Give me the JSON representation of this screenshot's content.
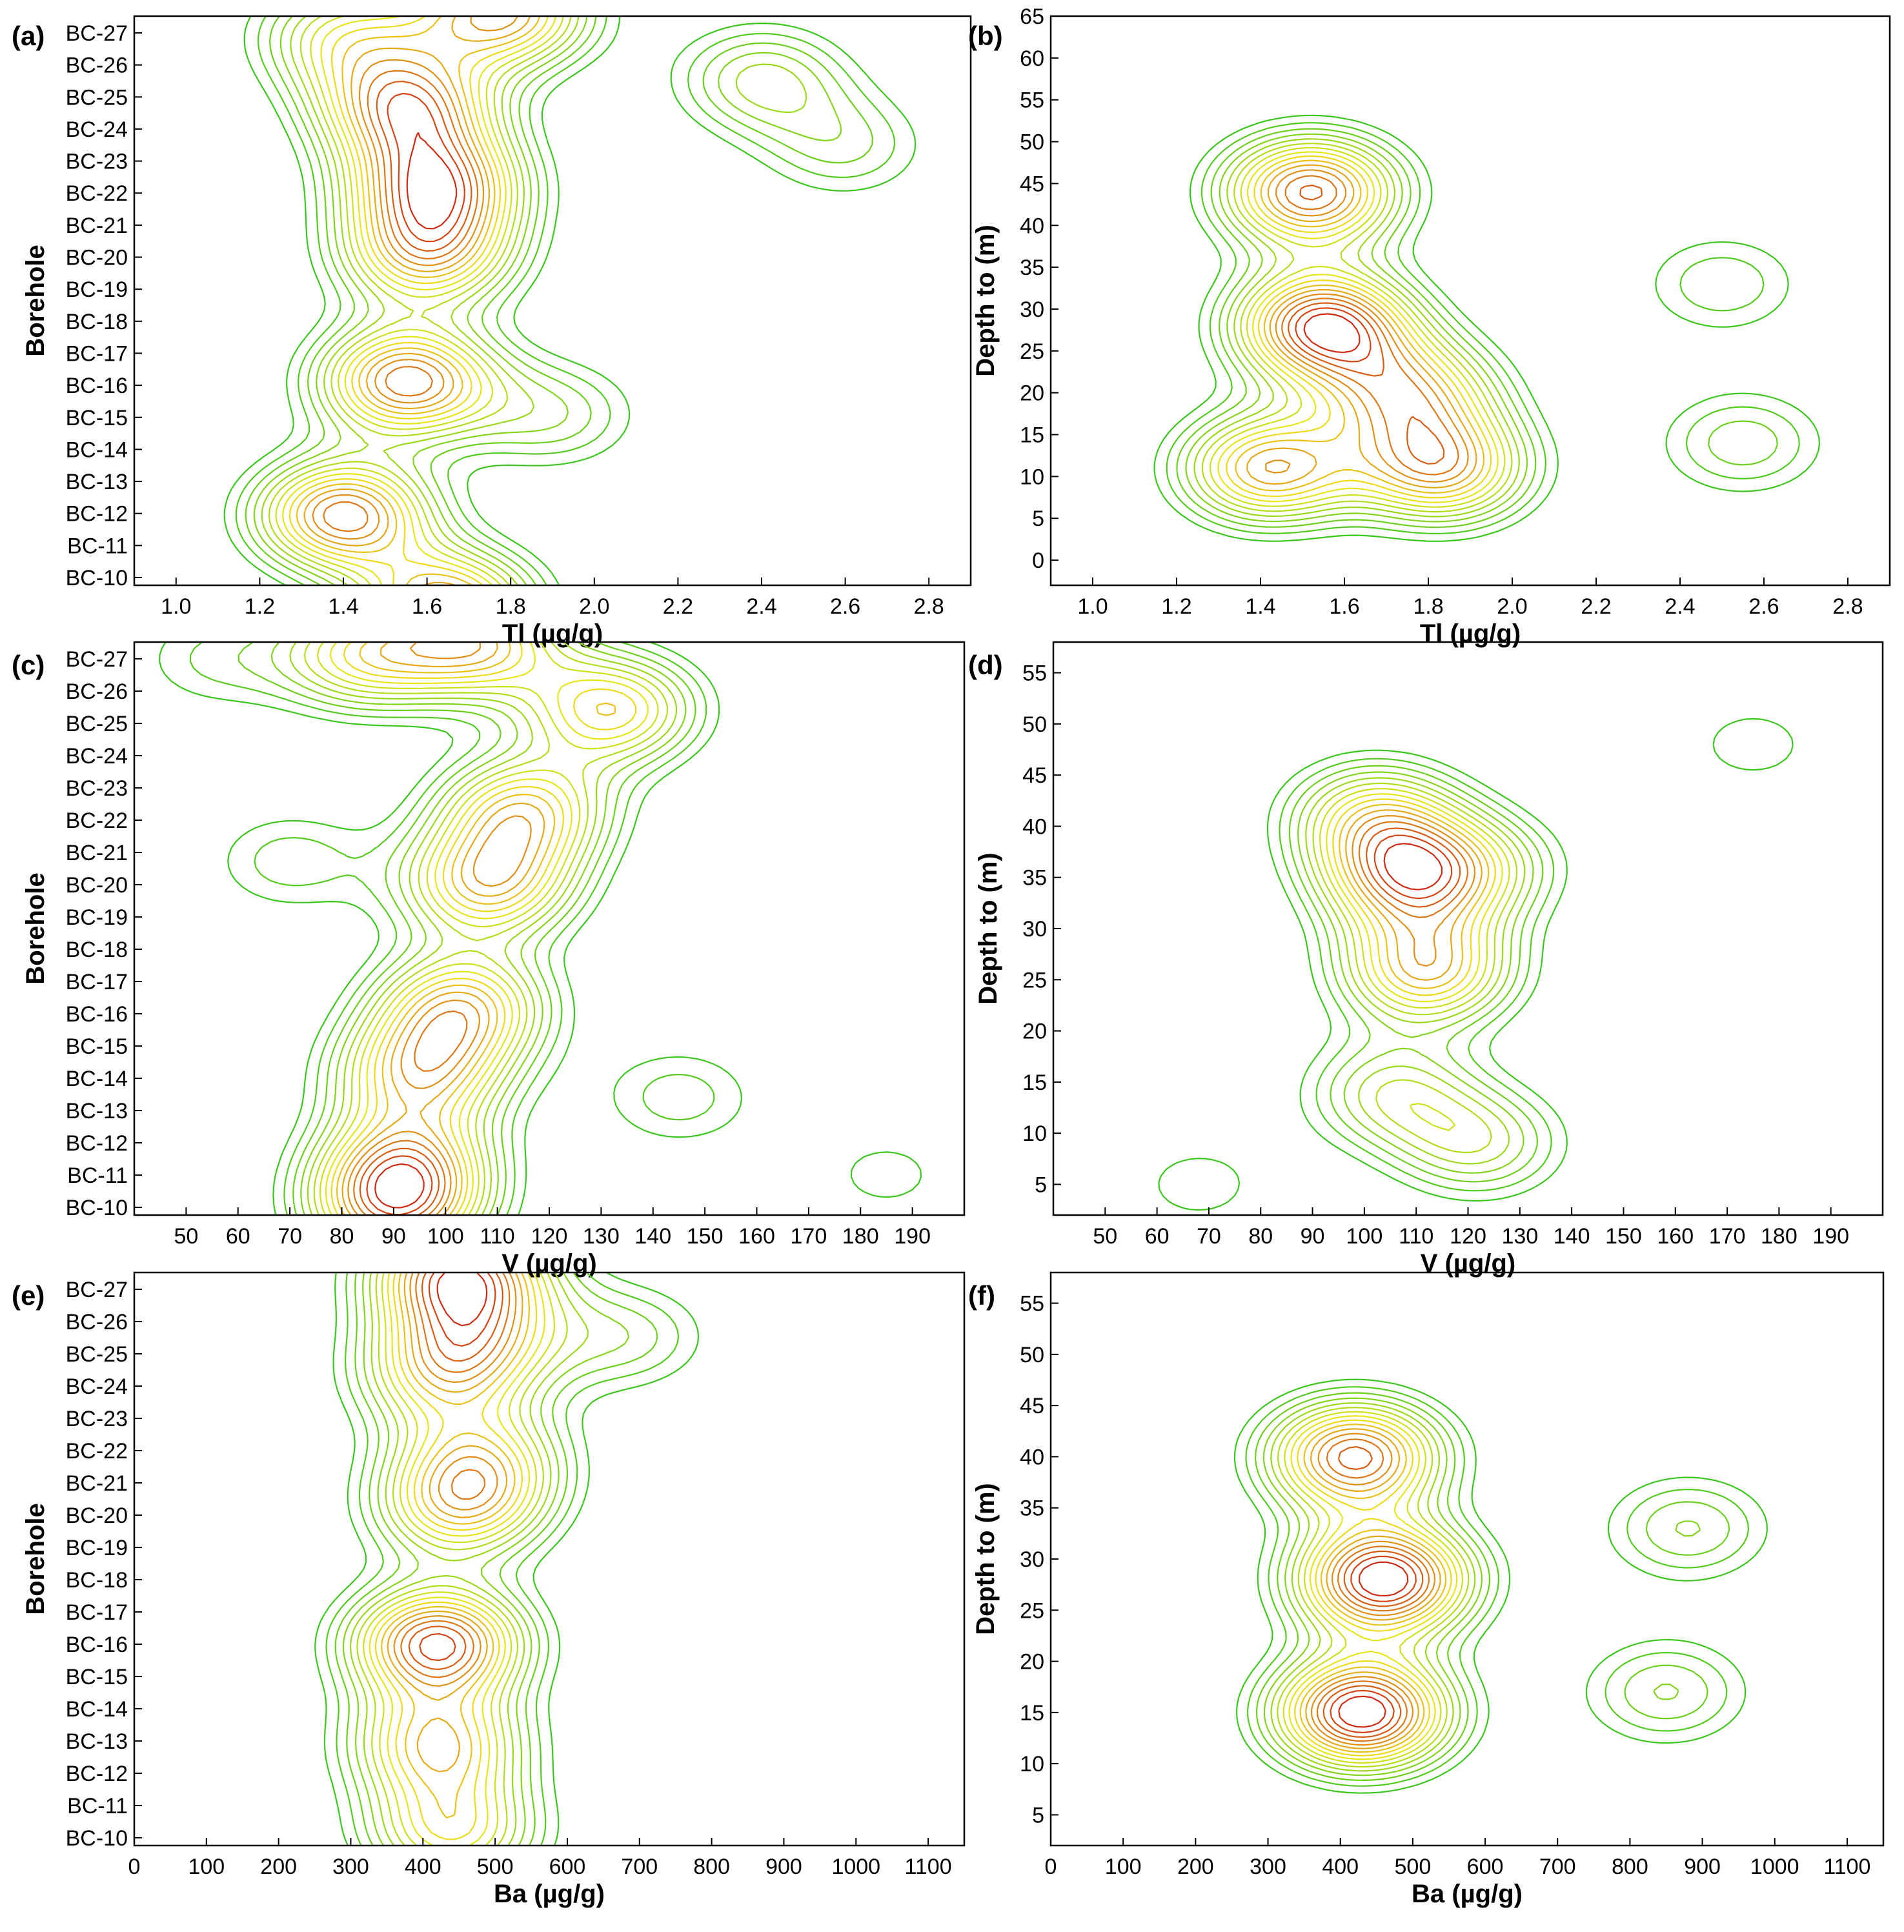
{
  "chart_data": [
    {
      "panel": "(a)",
      "type": "contour",
      "xlabel": "Tl (µg/g)",
      "ylabel": "Borehole",
      "xticks": [
        "1.0",
        "1.2",
        "1.4",
        "1.6",
        "1.8",
        "2.0",
        "2.2",
        "2.4",
        "2.6",
        "2.8"
      ],
      "xlim": [
        0.9,
        2.9
      ],
      "yticks": [
        "BC-10",
        "BC-11",
        "BC-12",
        "BC-13",
        "BC-14",
        "BC-15",
        "BC-16",
        "BC-17",
        "BC-18",
        "BC-19",
        "BC-20",
        "BC-21",
        "BC-22",
        "BC-23",
        "BC-24",
        "BC-25",
        "BC-26",
        "BC-27"
      ],
      "colormap": [
        "#22c21e",
        "#f0e818",
        "#cc1010"
      ],
      "peaks": [
        {
          "x": 1.62,
          "y": 12,
          "level": 0.95
        },
        {
          "x": 1.55,
          "y": 14.3,
          "level": 0.92
        },
        {
          "x": 1.55,
          "y": 6.1,
          "level": 1.0
        },
        {
          "x": 1.4,
          "y": 2.1,
          "level": 1.0
        },
        {
          "x": 1.6,
          "y": 9.9,
          "level": 0.8
        },
        {
          "x": 1.78,
          "y": 17.1,
          "level": 0.9
        },
        {
          "x": 1.65,
          "y": -0.6,
          "level": 0.9
        },
        {
          "x": 2.4,
          "y": 15.1,
          "level": 0.45
        },
        {
          "x": 2.6,
          "y": 13.1,
          "level": 0.3
        },
        {
          "x": 1.4,
          "y": 16.4,
          "level": 0.55
        },
        {
          "x": 1.9,
          "y": 5.1,
          "level": 0.35
        }
      ]
    },
    {
      "panel": "(b)",
      "type": "contour",
      "xlabel": "Tl (µg/g)",
      "ylabel": "Depth to (m)",
      "xticks": [
        "1.0",
        "1.2",
        "1.4",
        "1.6",
        "1.8",
        "2.0",
        "2.2",
        "2.4",
        "2.6",
        "2.8"
      ],
      "xlim": [
        0.9,
        2.9
      ],
      "yticks": [
        "0",
        "5",
        "10",
        "15",
        "20",
        "25",
        "30",
        "35",
        "40",
        "45",
        "50",
        "55",
        "60",
        "65"
      ],
      "ylim": [
        -3,
        65
      ],
      "colormap": [
        "#22c21e",
        "#f0e818",
        "#cc1010"
      ],
      "peaks": [
        {
          "x": 1.55,
          "y": 28,
          "level": 1.0
        },
        {
          "x": 1.52,
          "y": 44,
          "level": 0.9
        },
        {
          "x": 1.42,
          "y": 11,
          "level": 0.75
        },
        {
          "x": 1.83,
          "y": 11,
          "level": 0.75
        },
        {
          "x": 1.75,
          "y": 20,
          "level": 0.65
        },
        {
          "x": 2.55,
          "y": 14,
          "level": 0.3
        },
        {
          "x": 2.5,
          "y": 33,
          "level": 0.25
        }
      ]
    },
    {
      "panel": "(c)",
      "type": "contour",
      "xlabel": "V (µg/g)",
      "ylabel": "Borehole",
      "xticks": [
        "50",
        "60",
        "70",
        "80",
        "90",
        "100",
        "110",
        "120",
        "130",
        "140",
        "150",
        "160",
        "170",
        "180",
        "190"
      ],
      "xlim": [
        40,
        200
      ],
      "yticks": [
        "BC-10",
        "BC-11",
        "BC-12",
        "BC-13",
        "BC-14",
        "BC-15",
        "BC-16",
        "BC-17",
        "BC-18",
        "BC-19",
        "BC-20",
        "BC-21",
        "BC-22",
        "BC-23",
        "BC-24",
        "BC-25",
        "BC-26",
        "BC-27"
      ],
      "colormap": [
        "#22c21e",
        "#f0e818",
        "#cc1010"
      ],
      "peaks": [
        {
          "x": 106,
          "y": 17,
          "level": 1.0
        },
        {
          "x": 132,
          "y": 15,
          "level": 0.95
        },
        {
          "x": 115,
          "y": 12,
          "level": 0.95
        },
        {
          "x": 108,
          "y": 9.8,
          "level": 1.0
        },
        {
          "x": 103,
          "y": 6.2,
          "level": 1.0
        },
        {
          "x": 95,
          "y": 4.2,
          "level": 0.95
        },
        {
          "x": 92,
          "y": 1.5,
          "level": 1.0
        },
        {
          "x": 90,
          "y": 0,
          "level": 0.95
        },
        {
          "x": 70,
          "y": 10.5,
          "level": 0.35
        },
        {
          "x": 55,
          "y": 16.5,
          "level": 0.3
        },
        {
          "x": 145,
          "y": 3.5,
          "level": 0.35
        },
        {
          "x": 185,
          "y": 1.2,
          "level": 0.25
        },
        {
          "x": 84,
          "y": 16.6,
          "level": 0.8
        }
      ]
    },
    {
      "panel": "(d)",
      "type": "contour",
      "xlabel": "V (µg/g)",
      "ylabel": "Depth to (m)",
      "xticks": [
        "50",
        "60",
        "70",
        "80",
        "90",
        "100",
        "110",
        "120",
        "130",
        "140",
        "150",
        "160",
        "170",
        "180",
        "190"
      ],
      "xlim": [
        40,
        200
      ],
      "yticks": [
        "5",
        "10",
        "15",
        "20",
        "25",
        "30",
        "35",
        "40",
        "45",
        "50",
        "55"
      ],
      "ylim": [
        2,
        58
      ],
      "colormap": [
        "#22c21e",
        "#f0e818",
        "#cc1010"
      ],
      "peaks": [
        {
          "x": 108,
          "y": 35,
          "level": 1.0
        },
        {
          "x": 112,
          "y": 26,
          "level": 1.0
        },
        {
          "x": 102,
          "y": 41,
          "level": 0.75
        },
        {
          "x": 105,
          "y": 14,
          "level": 0.55
        },
        {
          "x": 122,
          "y": 9,
          "level": 0.55
        },
        {
          "x": 122,
          "y": 36,
          "level": 0.45
        },
        {
          "x": 175,
          "y": 48,
          "level": 0.25
        },
        {
          "x": 68,
          "y": 5,
          "level": 0.25
        }
      ]
    },
    {
      "panel": "(e)",
      "type": "contour",
      "xlabel": "Ba (µg/g)",
      "ylabel": "Borehole",
      "xticks": [
        "0",
        "100",
        "200",
        "300",
        "400",
        "500",
        "600",
        "700",
        "800",
        "900",
        "1000",
        "1100"
      ],
      "xlim": [
        0,
        1150
      ],
      "yticks": [
        "BC-10",
        "BC-11",
        "BC-12",
        "BC-13",
        "BC-14",
        "BC-15",
        "BC-16",
        "BC-17",
        "BC-18",
        "BC-19",
        "BC-20",
        "BC-21",
        "BC-22",
        "BC-23",
        "BC-24",
        "BC-25",
        "BC-26",
        "BC-27"
      ],
      "colormap": [
        "#22c21e",
        "#f0e818",
        "#cc1010"
      ],
      "peaks": [
        {
          "x": 420,
          "y": 6,
          "level": 1.0
        },
        {
          "x": 450,
          "y": 17,
          "level": 0.95
        },
        {
          "x": 420,
          "y": 3,
          "level": 0.7
        },
        {
          "x": 440,
          "y": 0.4,
          "level": 0.6
        },
        {
          "x": 450,
          "y": 10,
          "level": 0.6
        },
        {
          "x": 480,
          "y": 11.5,
          "level": 0.5
        },
        {
          "x": 470,
          "y": 15,
          "level": 0.5
        },
        {
          "x": 680,
          "y": 15.1,
          "level": 0.3
        },
        {
          "x": 420,
          "y": 13.9,
          "level": 0.45
        }
      ]
    },
    {
      "panel": "(f)",
      "type": "contour",
      "xlabel": "Ba (µg/g)",
      "ylabel": "Depth to (m)",
      "xticks": [
        "0",
        "100",
        "200",
        "300",
        "400",
        "500",
        "600",
        "700",
        "800",
        "900",
        "1000",
        "1100"
      ],
      "xlim": [
        0,
        1150
      ],
      "yticks": [
        "5",
        "10",
        "15",
        "20",
        "25",
        "30",
        "35",
        "40",
        "45",
        "50",
        "55"
      ],
      "ylim": [
        2,
        58
      ],
      "colormap": [
        "#22c21e",
        "#f0e818",
        "#cc1010"
      ],
      "peaks": [
        {
          "x": 460,
          "y": 28,
          "level": 1.0
        },
        {
          "x": 430,
          "y": 15,
          "level": 1.0
        },
        {
          "x": 420,
          "y": 40,
          "level": 0.85
        },
        {
          "x": 880,
          "y": 33,
          "level": 0.3
        },
        {
          "x": 850,
          "y": 17,
          "level": 0.3
        }
      ]
    }
  ]
}
